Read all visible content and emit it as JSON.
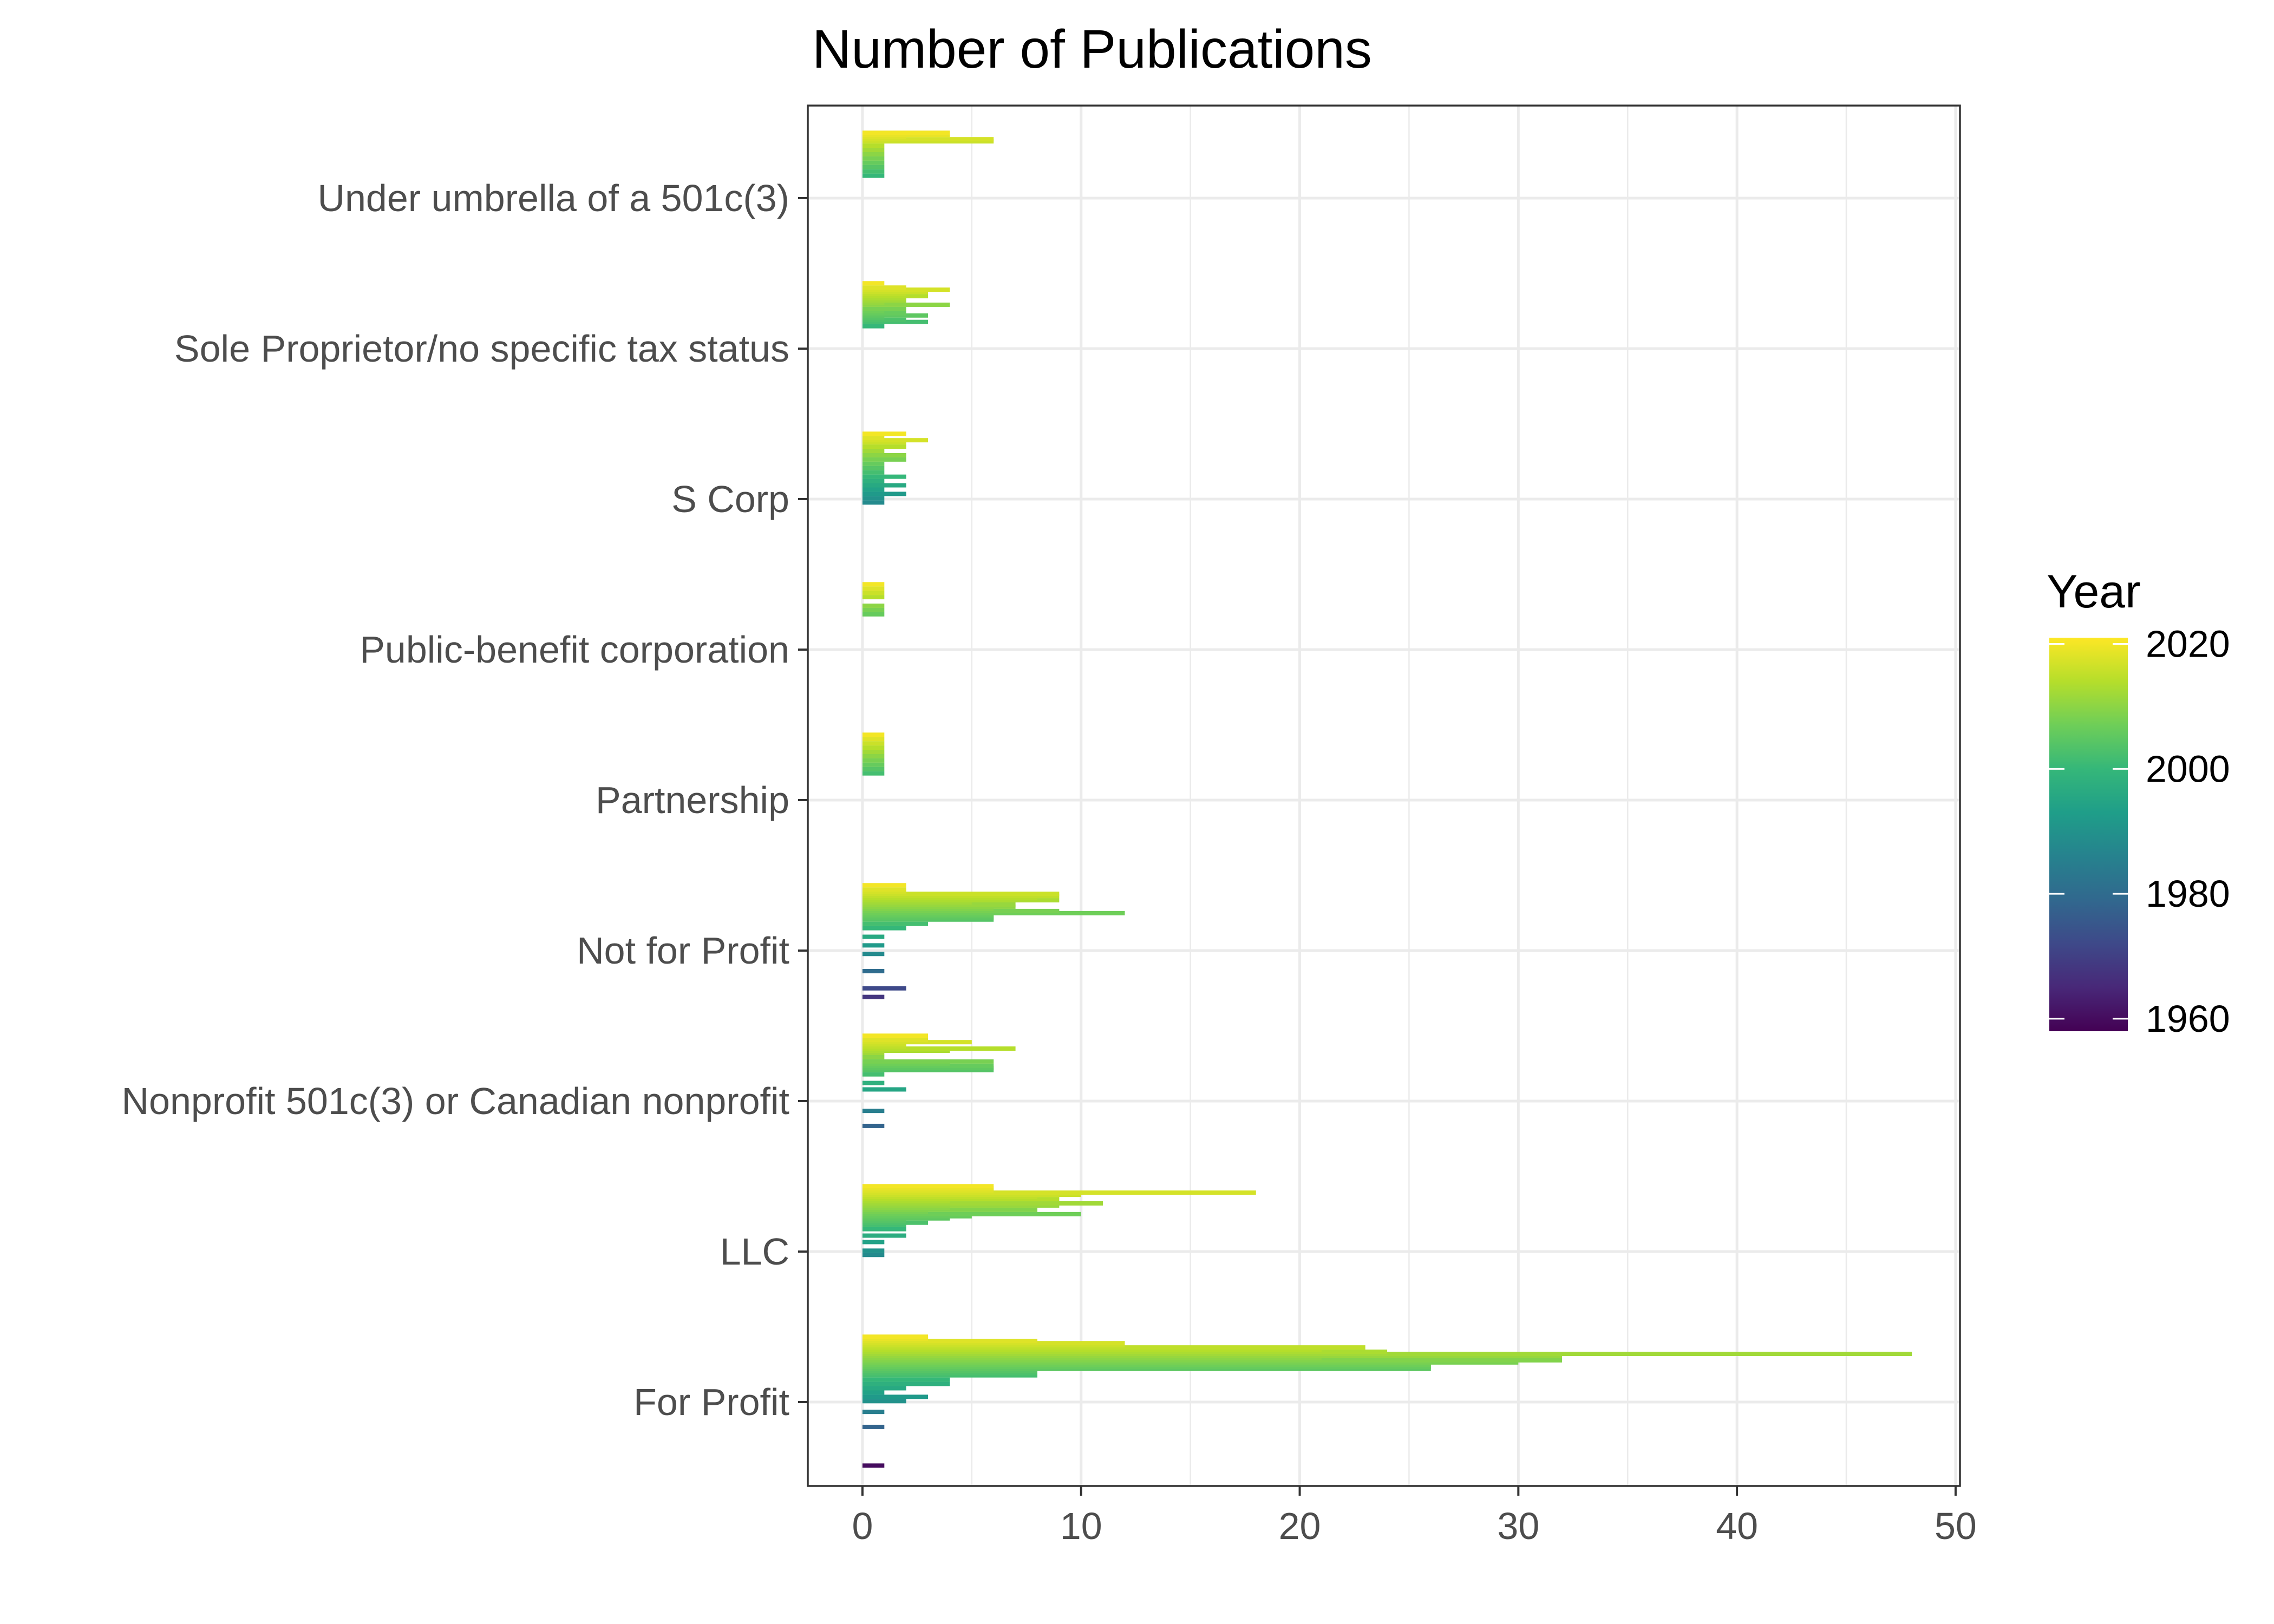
{
  "chart_data": {
    "type": "bar",
    "orientation": "horizontal",
    "title": "Number of Publications",
    "xlabel": "",
    "ylabel": "",
    "xlim": [
      -2.5,
      50.2
    ],
    "x_ticks": [
      0,
      10,
      20,
      30,
      40,
      50
    ],
    "grid": true,
    "categories": [
      "For Profit",
      "LLC",
      "Nonprofit 501c(3) or Canadian nonprofit",
      "Not for Profit",
      "Partnership",
      "Public-benefit corporation",
      "S Corp",
      "Sole Proprietor/no specific tax status",
      "Under umbrella of a 501c(3)"
    ],
    "color_scale": {
      "name": "Year",
      "palette": "viridis",
      "limits": [
        1958,
        2021
      ],
      "ticks": [
        1960,
        1980,
        2000,
        2020
      ]
    },
    "groups": [
      {
        "category": "For Profit",
        "bars": [
          {
            "year": 1960,
            "value": 1
          },
          {
            "year": 1978,
            "value": 1
          },
          {
            "year": 1985,
            "value": 1
          },
          {
            "year": 1990,
            "value": 2
          },
          {
            "year": 1992,
            "value": 3
          },
          {
            "year": 1994,
            "value": 1
          },
          {
            "year": 1996,
            "value": 2
          },
          {
            "year": 1998,
            "value": 4
          },
          {
            "year": 2000,
            "value": 4
          },
          {
            "year": 2002,
            "value": 8
          },
          {
            "year": 2003,
            "value": 8
          },
          {
            "year": 2004,
            "value": 8
          },
          {
            "year": 2005,
            "value": 26
          },
          {
            "year": 2006,
            "value": 26
          },
          {
            "year": 2007,
            "value": 26
          },
          {
            "year": 2008,
            "value": 30
          },
          {
            "year": 2009,
            "value": 32
          },
          {
            "year": 2010,
            "value": 21
          },
          {
            "year": 2011,
            "value": 32
          },
          {
            "year": 2012,
            "value": 48
          },
          {
            "year": 2013,
            "value": 24
          },
          {
            "year": 2014,
            "value": 21
          },
          {
            "year": 2015,
            "value": 23
          },
          {
            "year": 2016,
            "value": 12
          },
          {
            "year": 2017,
            "value": 12
          },
          {
            "year": 2018,
            "value": 8
          },
          {
            "year": 2019,
            "value": 3
          },
          {
            "year": 2020,
            "value": 3
          }
        ]
      },
      {
        "category": "LLC",
        "bars": [
          {
            "year": 1988,
            "value": 1
          },
          {
            "year": 1990,
            "value": 1
          },
          {
            "year": 1994,
            "value": 1
          },
          {
            "year": 1997,
            "value": 2
          },
          {
            "year": 2000,
            "value": 2
          },
          {
            "year": 2002,
            "value": 2
          },
          {
            "year": 2003,
            "value": 3
          },
          {
            "year": 2004,
            "value": 2
          },
          {
            "year": 2005,
            "value": 4
          },
          {
            "year": 2006,
            "value": 5
          },
          {
            "year": 2007,
            "value": 10
          },
          {
            "year": 2008,
            "value": 3
          },
          {
            "year": 2009,
            "value": 8
          },
          {
            "year": 2010,
            "value": 4
          },
          {
            "year": 2011,
            "value": 9
          },
          {
            "year": 2012,
            "value": 11
          },
          {
            "year": 2013,
            "value": 4
          },
          {
            "year": 2014,
            "value": 9
          },
          {
            "year": 2015,
            "value": 8
          },
          {
            "year": 2016,
            "value": 10
          },
          {
            "year": 2017,
            "value": 18
          },
          {
            "year": 2018,
            "value": 6
          },
          {
            "year": 2019,
            "value": 6
          },
          {
            "year": 2020,
            "value": 6
          }
        ]
      },
      {
        "category": "Nonprofit 501c(3) or Canadian nonprofit",
        "bars": [
          {
            "year": 1978,
            "value": 1
          },
          {
            "year": 1985,
            "value": 1
          },
          {
            "year": 1995,
            "value": 2
          },
          {
            "year": 1998,
            "value": 1
          },
          {
            "year": 2002,
            "value": 1
          },
          {
            "year": 2004,
            "value": 6
          },
          {
            "year": 2005,
            "value": 6
          },
          {
            "year": 2006,
            "value": 6
          },
          {
            "year": 2007,
            "value": 4
          },
          {
            "year": 2008,
            "value": 6
          },
          {
            "year": 2010,
            "value": 1
          },
          {
            "year": 2012,
            "value": 1
          },
          {
            "year": 2013,
            "value": 4
          },
          {
            "year": 2014,
            "value": 7
          },
          {
            "year": 2015,
            "value": 2
          },
          {
            "year": 2016,
            "value": 2
          },
          {
            "year": 2017,
            "value": 5
          },
          {
            "year": 2018,
            "value": 3
          },
          {
            "year": 2020,
            "value": 3
          }
        ]
      },
      {
        "category": "Not for Profit",
        "bars": [
          {
            "year": 1968,
            "value": 1
          },
          {
            "year": 1972,
            "value": 2
          },
          {
            "year": 1980,
            "value": 1
          },
          {
            "year": 1988,
            "value": 1
          },
          {
            "year": 1992,
            "value": 1
          },
          {
            "year": 1996,
            "value": 1
          },
          {
            "year": 2000,
            "value": 2
          },
          {
            "year": 2002,
            "value": 3
          },
          {
            "year": 2004,
            "value": 6
          },
          {
            "year": 2005,
            "value": 6
          },
          {
            "year": 2006,
            "value": 6
          },
          {
            "year": 2007,
            "value": 12
          },
          {
            "year": 2008,
            "value": 9
          },
          {
            "year": 2009,
            "value": 6
          },
          {
            "year": 2010,
            "value": 7
          },
          {
            "year": 2011,
            "value": 7
          },
          {
            "year": 2012,
            "value": 5
          },
          {
            "year": 2013,
            "value": 9
          },
          {
            "year": 2014,
            "value": 8
          },
          {
            "year": 2015,
            "value": 9
          },
          {
            "year": 2016,
            "value": 9
          },
          {
            "year": 2017,
            "value": 2
          },
          {
            "year": 2018,
            "value": 2
          },
          {
            "year": 2020,
            "value": 2
          }
        ]
      },
      {
        "category": "Partnership",
        "bars": [
          {
            "year": 2002,
            "value": 1
          },
          {
            "year": 2004,
            "value": 1
          },
          {
            "year": 2006,
            "value": 1
          },
          {
            "year": 2008,
            "value": 1
          },
          {
            "year": 2010,
            "value": 1
          },
          {
            "year": 2012,
            "value": 1
          },
          {
            "year": 2014,
            "value": 1
          },
          {
            "year": 2016,
            "value": 1
          },
          {
            "year": 2018,
            "value": 1
          },
          {
            "year": 2020,
            "value": 1
          }
        ]
      },
      {
        "category": "Public-benefit corporation",
        "bars": [
          {
            "year": 2006,
            "value": 1
          },
          {
            "year": 2008,
            "value": 1
          },
          {
            "year": 2010,
            "value": 1
          },
          {
            "year": 2014,
            "value": 1
          },
          {
            "year": 2016,
            "value": 1
          },
          {
            "year": 2018,
            "value": 1
          },
          {
            "year": 2020,
            "value": 1
          }
        ]
      },
      {
        "category": "S Corp",
        "bars": [
          {
            "year": 1988,
            "value": 1
          },
          {
            "year": 1990,
            "value": 1
          },
          {
            "year": 1992,
            "value": 2
          },
          {
            "year": 1994,
            "value": 1
          },
          {
            "year": 1996,
            "value": 2
          },
          {
            "year": 1998,
            "value": 1
          },
          {
            "year": 2000,
            "value": 2
          },
          {
            "year": 2002,
            "value": 1
          },
          {
            "year": 2004,
            "value": 1
          },
          {
            "year": 2006,
            "value": 1
          },
          {
            "year": 2008,
            "value": 2
          },
          {
            "year": 2010,
            "value": 2
          },
          {
            "year": 2012,
            "value": 1
          },
          {
            "year": 2014,
            "value": 2
          },
          {
            "year": 2016,
            "value": 2
          },
          {
            "year": 2017,
            "value": 3
          },
          {
            "year": 2018,
            "value": 1
          },
          {
            "year": 2020,
            "value": 2
          }
        ]
      },
      {
        "category": "Sole Proprietor/no specific tax status",
        "bars": [
          {
            "year": 2000,
            "value": 1
          },
          {
            "year": 2002,
            "value": 3
          },
          {
            "year": 2003,
            "value": 2
          },
          {
            "year": 2004,
            "value": 1
          },
          {
            "year": 2005,
            "value": 3
          },
          {
            "year": 2006,
            "value": 2
          },
          {
            "year": 2007,
            "value": 1
          },
          {
            "year": 2008,
            "value": 2
          },
          {
            "year": 2010,
            "value": 4
          },
          {
            "year": 2011,
            "value": 1
          },
          {
            "year": 2012,
            "value": 2
          },
          {
            "year": 2013,
            "value": 2
          },
          {
            "year": 2014,
            "value": 3
          },
          {
            "year": 2015,
            "value": 2
          },
          {
            "year": 2016,
            "value": 3
          },
          {
            "year": 2017,
            "value": 4
          },
          {
            "year": 2018,
            "value": 2
          },
          {
            "year": 2020,
            "value": 1
          }
        ]
      },
      {
        "category": "Under umbrella of a 501c(3)",
        "bars": [
          {
            "year": 2000,
            "value": 1
          },
          {
            "year": 2002,
            "value": 1
          },
          {
            "year": 2004,
            "value": 1
          },
          {
            "year": 2006,
            "value": 1
          },
          {
            "year": 2008,
            "value": 1
          },
          {
            "year": 2010,
            "value": 1
          },
          {
            "year": 2012,
            "value": 1
          },
          {
            "year": 2014,
            "value": 1
          },
          {
            "year": 2016,
            "value": 6
          },
          {
            "year": 2017,
            "value": 6
          },
          {
            "year": 2018,
            "value": 2
          },
          {
            "year": 2019,
            "value": 4
          },
          {
            "year": 2020,
            "value": 4
          }
        ]
      }
    ]
  }
}
